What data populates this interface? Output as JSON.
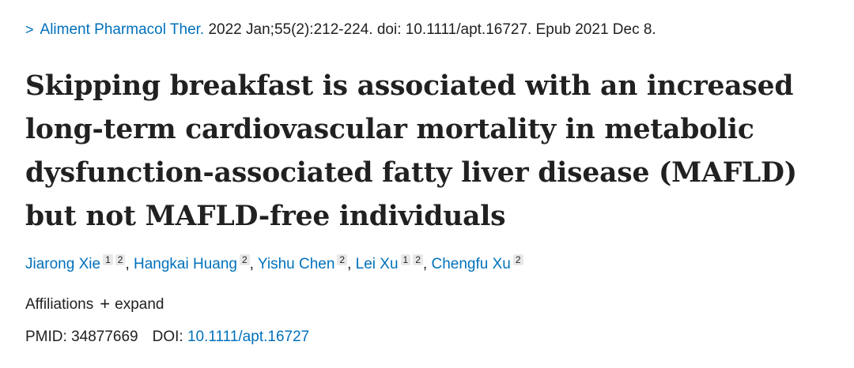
{
  "citation": {
    "chevron": ">",
    "journal": "Aliment Pharmacol Ther.",
    "details": "2022 Jan;55(2):212-224. doi: 10.1111/apt.16727. Epub 2021 Dec 8."
  },
  "title": {
    "lines": [
      "Skipping breakfast is associated with an increased",
      "long-term cardiovascular mortality in metabolic",
      "dysfunction-associated fatty liver disease (MAFLD)",
      "but not MAFLD-free individuals"
    ]
  },
  "authors": [
    {
      "name": "Jiarong Xie",
      "affiliations": [
        "1",
        "2"
      ]
    },
    {
      "name": "Hangkai Huang",
      "affiliations": [
        "2"
      ]
    },
    {
      "name": "Yishu Chen",
      "affiliations": [
        "2"
      ]
    },
    {
      "name": "Lei Xu",
      "affiliations": [
        "1",
        "2"
      ]
    },
    {
      "name": "Chengfu Xu",
      "affiliations": [
        "2"
      ]
    }
  ],
  "affiliations_toggle": {
    "label": "Affiliations",
    "icon": "plus-icon",
    "action": "expand"
  },
  "identifiers": {
    "pmid_label": "PMID:",
    "pmid": "34877669",
    "doi_label": "DOI:",
    "doi": "10.1111/apt.16727"
  },
  "colors": {
    "link": "#0071bc",
    "text": "#212121",
    "superscript_bg": "#e8e8e8"
  }
}
